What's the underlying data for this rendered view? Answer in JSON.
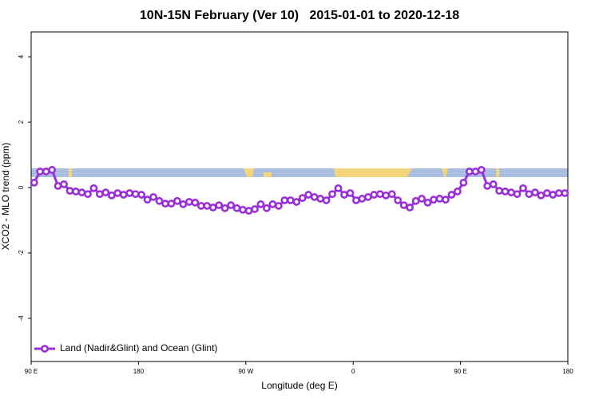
{
  "chart_data": {
    "type": "line",
    "title": "10N-15N February (Ver 10)   2015-01-01 to 2020-12-18",
    "x_label": "Longitude (deg E)",
    "y_label": "XCO2 - MLO trend (ppm)",
    "x": [
      92.5,
      97.5,
      102.5,
      107.5,
      112.5,
      117.5,
      122.5,
      127.5,
      132.5,
      137.5,
      142.5,
      147.5,
      152.5,
      157.5,
      162.5,
      167.5,
      172.5,
      177.5,
      182.5,
      187.5,
      192.5,
      197.5,
      202.5,
      207.5,
      212.5,
      217.5,
      222.5,
      227.5,
      232.5,
      237.5,
      242.5,
      247.5,
      252.5,
      257.5,
      262.5,
      267.5,
      272.5,
      277.5,
      282.5,
      287.5,
      292.5,
      297.5,
      302.5,
      307.5,
      312.5,
      317.5,
      322.5,
      327.5,
      332.5,
      337.5,
      342.5,
      347.5,
      352.5,
      357.5,
      362.5,
      367.5,
      372.5,
      377.5,
      382.5,
      387.5,
      392.5,
      397.5,
      402.5,
      407.5,
      412.5,
      417.5,
      422.5,
      427.5,
      432.5,
      437.5,
      442.5,
      447.5,
      452.5,
      457.5,
      462.5,
      467.5,
      472.5,
      477.5,
      482.5,
      487.5,
      492.5,
      497.5,
      502.5,
      507.5,
      512.5,
      517.5,
      522.5,
      527.5,
      532.5,
      537.5
    ],
    "series": [
      {
        "name": "Land (Nadir&Glint) and Ocean (Glint)",
        "color": "#9a2fd8",
        "values": [
          0.15,
          0.49,
          0.49,
          0.54,
          0.05,
          0.1,
          -0.1,
          -0.12,
          -0.15,
          -0.2,
          -0.02,
          -0.2,
          -0.15,
          -0.24,
          -0.17,
          -0.22,
          -0.17,
          -0.2,
          -0.22,
          -0.37,
          -0.29,
          -0.41,
          -0.49,
          -0.49,
          -0.41,
          -0.51,
          -0.44,
          -0.46,
          -0.56,
          -0.56,
          -0.61,
          -0.54,
          -0.63,
          -0.54,
          -0.63,
          -0.68,
          -0.71,
          -0.66,
          -0.51,
          -0.63,
          -0.51,
          -0.56,
          -0.39,
          -0.39,
          -0.44,
          -0.32,
          -0.22,
          -0.29,
          -0.34,
          -0.39,
          -0.2,
          -0.02,
          -0.22,
          -0.17,
          -0.39,
          -0.34,
          -0.29,
          -0.22,
          -0.2,
          -0.24,
          -0.2,
          -0.39,
          -0.54,
          -0.61,
          -0.41,
          -0.34,
          -0.46,
          -0.37,
          -0.34,
          -0.37,
          -0.22,
          -0.12,
          0.15,
          0.49,
          0.49,
          0.54,
          0.05,
          0.1,
          -0.1,
          -0.12,
          -0.15,
          -0.2,
          -0.02,
          -0.2,
          -0.15,
          -0.24,
          -0.17,
          -0.22,
          -0.17,
          -0.17
        ]
      }
    ],
    "xlim": [
      90,
      540
    ],
    "xticks": [
      {
        "value": 90,
        "label": "90 E"
      },
      180,
      {
        "value": 270,
        "label": "90 W"
      },
      {
        "value": 360,
        "label": "0"
      },
      {
        "value": 450,
        "label": "90 E"
      },
      {
        "value": 540,
        "label": "180"
      }
    ],
    "ylim": [
      -5.32,
      4.76
    ],
    "yticks": [
      -4,
      -2,
      0,
      2,
      4
    ],
    "legend": "bottom-left"
  }
}
